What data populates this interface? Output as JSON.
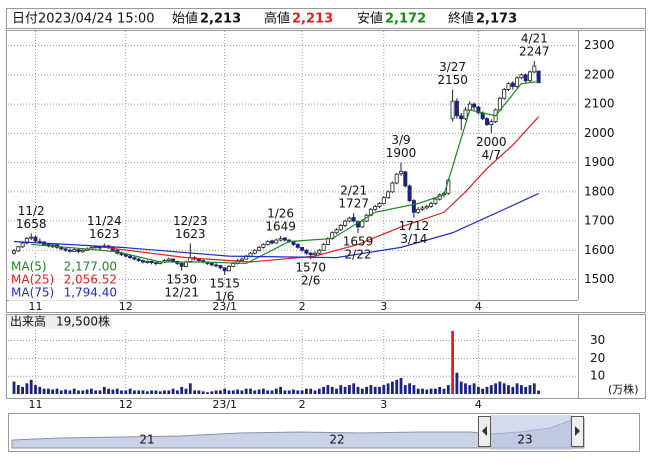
{
  "chart_data": {
    "type": "candlestick",
    "header": {
      "date_label": "日付",
      "date": "2023/04/24 15:00",
      "open_label": "始値",
      "open": "2,213",
      "high_label": "高値",
      "high": "2,213",
      "low_label": "安値",
      "low": "2,172",
      "close_label": "終値",
      "close": "2,173"
    },
    "up_color": "#ffffff",
    "down_color": "#1a237e",
    "edge_color": "#222222",
    "ylim": [
      1430,
      2350
    ],
    "yticks": [
      1500,
      1600,
      1700,
      1800,
      1900,
      2000,
      2100,
      2200,
      2300
    ],
    "grid": true,
    "months": [
      {
        "label": "11",
        "candle": 5
      },
      {
        "label": "12",
        "candle": 26
      },
      {
        "label": "23/1",
        "candle": 49
      },
      {
        "label": "2",
        "candle": 67
      },
      {
        "label": "3",
        "candle": 86
      },
      {
        "label": "4",
        "candle": 108
      }
    ],
    "candles": [
      [
        1590,
        1605,
        1585,
        1598
      ],
      [
        1598,
        1615,
        1595,
        1612
      ],
      [
        1612,
        1630,
        1608,
        1625
      ],
      [
        1625,
        1645,
        1620,
        1640
      ],
      [
        1642,
        1658,
        1635,
        1645
      ],
      [
        1645,
        1650,
        1628,
        1632
      ],
      [
        1630,
        1640,
        1622,
        1628
      ],
      [
        1628,
        1632,
        1615,
        1620
      ],
      [
        1620,
        1625,
        1610,
        1615
      ],
      [
        1612,
        1622,
        1608,
        1618
      ],
      [
        1618,
        1620,
        1605,
        1610
      ],
      [
        1610,
        1614,
        1600,
        1605
      ],
      [
        1605,
        1608,
        1595,
        1600
      ],
      [
        1600,
        1606,
        1592,
        1598
      ],
      [
        1596,
        1608,
        1594,
        1602
      ],
      [
        1602,
        1604,
        1590,
        1596
      ],
      [
        1595,
        1604,
        1592,
        1600
      ],
      [
        1600,
        1610,
        1598,
        1605
      ],
      [
        1604,
        1614,
        1602,
        1610
      ],
      [
        1610,
        1616,
        1606,
        1612
      ],
      [
        1612,
        1615,
        1602,
        1608
      ],
      [
        1610,
        1623,
        1608,
        1615
      ],
      [
        1615,
        1618,
        1605,
        1610
      ],
      [
        1610,
        1612,
        1596,
        1600
      ],
      [
        1600,
        1604,
        1586,
        1590
      ],
      [
        1590,
        1595,
        1580,
        1585
      ],
      [
        1585,
        1590,
        1575,
        1580
      ],
      [
        1580,
        1584,
        1570,
        1575
      ],
      [
        1575,
        1578,
        1565,
        1570
      ],
      [
        1570,
        1574,
        1560,
        1565
      ],
      [
        1565,
        1568,
        1555,
        1560
      ],
      [
        1558,
        1566,
        1554,
        1562
      ],
      [
        1562,
        1564,
        1552,
        1558
      ],
      [
        1558,
        1560,
        1548,
        1555
      ],
      [
        1555,
        1564,
        1552,
        1560
      ],
      [
        1560,
        1570,
        1556,
        1565
      ],
      [
        1565,
        1575,
        1562,
        1570
      ],
      [
        1570,
        1572,
        1558,
        1562
      ],
      [
        1562,
        1565,
        1550,
        1555
      ],
      [
        1555,
        1558,
        1530,
        1545
      ],
      [
        1545,
        1565,
        1542,
        1560
      ],
      [
        1562,
        1623,
        1558,
        1575
      ],
      [
        1575,
        1580,
        1565,
        1570
      ],
      [
        1570,
        1574,
        1560,
        1565
      ],
      [
        1565,
        1568,
        1555,
        1560
      ],
      [
        1560,
        1562,
        1550,
        1555
      ],
      [
        1555,
        1558,
        1545,
        1550
      ],
      [
        1550,
        1556,
        1542,
        1548
      ],
      [
        1548,
        1550,
        1535,
        1540
      ],
      [
        1540,
        1542,
        1515,
        1530
      ],
      [
        1530,
        1550,
        1528,
        1545
      ],
      [
        1545,
        1560,
        1542,
        1555
      ],
      [
        1555,
        1570,
        1552,
        1565
      ],
      [
        1565,
        1575,
        1560,
        1570
      ],
      [
        1570,
        1585,
        1568,
        1580
      ],
      [
        1580,
        1595,
        1576,
        1590
      ],
      [
        1590,
        1604,
        1586,
        1600
      ],
      [
        1600,
        1615,
        1596,
        1610
      ],
      [
        1610,
        1624,
        1606,
        1620
      ],
      [
        1620,
        1634,
        1616,
        1630
      ],
      [
        1632,
        1636,
        1620,
        1625
      ],
      [
        1625,
        1640,
        1622,
        1635
      ],
      [
        1635,
        1649,
        1630,
        1640
      ],
      [
        1642,
        1645,
        1630,
        1635
      ],
      [
        1635,
        1638,
        1625,
        1630
      ],
      [
        1630,
        1632,
        1615,
        1620
      ],
      [
        1620,
        1624,
        1605,
        1610
      ],
      [
        1610,
        1612,
        1595,
        1600
      ],
      [
        1600,
        1604,
        1585,
        1590
      ],
      [
        1590,
        1594,
        1570,
        1585
      ],
      [
        1585,
        1596,
        1580,
        1590
      ],
      [
        1590,
        1605,
        1586,
        1600
      ],
      [
        1600,
        1625,
        1598,
        1620
      ],
      [
        1620,
        1645,
        1618,
        1640
      ],
      [
        1640,
        1665,
        1636,
        1660
      ],
      [
        1660,
        1676,
        1655,
        1670
      ],
      [
        1670,
        1690,
        1666,
        1685
      ],
      [
        1685,
        1705,
        1680,
        1700
      ],
      [
        1700,
        1715,
        1695,
        1710
      ],
      [
        1712,
        1727,
        1695,
        1700
      ],
      [
        1698,
        1702,
        1659,
        1680
      ],
      [
        1680,
        1705,
        1676,
        1700
      ],
      [
        1700,
        1725,
        1696,
        1720
      ],
      [
        1720,
        1745,
        1716,
        1740
      ],
      [
        1740,
        1756,
        1735,
        1750
      ],
      [
        1750,
        1765,
        1744,
        1760
      ],
      [
        1760,
        1785,
        1756,
        1780
      ],
      [
        1780,
        1805,
        1776,
        1800
      ],
      [
        1800,
        1835,
        1796,
        1830
      ],
      [
        1830,
        1865,
        1826,
        1860
      ],
      [
        1862,
        1900,
        1855,
        1870
      ],
      [
        1868,
        1872,
        1815,
        1820
      ],
      [
        1820,
        1825,
        1765,
        1770
      ],
      [
        1770,
        1775,
        1712,
        1730
      ],
      [
        1730,
        1748,
        1725,
        1740
      ],
      [
        1740,
        1752,
        1735,
        1745
      ],
      [
        1745,
        1756,
        1740,
        1750
      ],
      [
        1750,
        1766,
        1745,
        1760
      ],
      [
        1760,
        1780,
        1755,
        1775
      ],
      [
        1775,
        1795,
        1770,
        1790
      ],
      [
        1790,
        1800,
        1780,
        1795
      ],
      [
        1795,
        1845,
        1790,
        1840
      ],
      [
        2050,
        2150,
        2040,
        2110
      ],
      [
        2110,
        2120,
        2050,
        2060
      ],
      [
        2060,
        2070,
        2010,
        2050
      ],
      [
        2050,
        2090,
        2045,
        2080
      ],
      [
        2080,
        2110,
        2075,
        2100
      ],
      [
        2100,
        2105,
        2080,
        2090
      ],
      [
        2090,
        2095,
        2065,
        2070
      ],
      [
        2070,
        2075,
        2045,
        2050
      ],
      [
        2050,
        2055,
        2025,
        2030
      ],
      [
        2030,
        2048,
        2000,
        2040
      ],
      [
        2040,
        2085,
        2035,
        2080
      ],
      [
        2080,
        2125,
        2075,
        2120
      ],
      [
        2120,
        2155,
        2115,
        2150
      ],
      [
        2150,
        2175,
        2145,
        2170
      ],
      [
        2172,
        2178,
        2150,
        2160
      ],
      [
        2160,
        2195,
        2155,
        2190
      ],
      [
        2190,
        2205,
        2185,
        2200
      ],
      [
        2200,
        2205,
        2170,
        2180
      ],
      [
        2180,
        2215,
        2175,
        2210
      ],
      [
        2210,
        2247,
        2205,
        2230
      ],
      [
        2213,
        2213,
        2172,
        2173
      ]
    ],
    "series": [
      {
        "name": "MA(5)",
        "legend_value": "2,177.00",
        "color": "#1b8a1b",
        "x": [
          4,
          14,
          24,
          34,
          44,
          54,
          64,
          74,
          84,
          94,
          100,
          106,
          112,
          118,
          122
        ],
        "values": [
          1620,
          1608,
          1595,
          1560,
          1560,
          1555,
          1630,
          1640,
          1730,
          1760,
          1790,
          2080,
          2060,
          2170,
          2177
        ]
      },
      {
        "name": "MA(25)",
        "legend_value": "2,056.52",
        "color": "#e02020",
        "x": [
          20,
          40,
          55,
          70,
          80,
          90,
          100,
          105,
          110,
          116,
          122
        ],
        "values": [
          1612,
          1575,
          1560,
          1580,
          1620,
          1680,
          1730,
          1800,
          1880,
          1960,
          2057
        ]
      },
      {
        "name": "MA(75)",
        "legend_value": "1,794.40",
        "color": "#2030c0",
        "x": [
          0,
          25,
          50,
          75,
          90,
          102,
          111,
          122
        ],
        "values": [
          1630,
          1610,
          1580,
          1575,
          1610,
          1660,
          1720,
          1794
        ]
      }
    ],
    "annotations": [
      {
        "date": "11/2",
        "price": 1658,
        "candle": 4,
        "side": "above"
      },
      {
        "date": "11/24",
        "price": 1623,
        "candle": 21,
        "side": "above"
      },
      {
        "date": "12/21",
        "price": 1530,
        "candle": 39,
        "side": "below"
      },
      {
        "date": "12/23",
        "price": 1623,
        "candle": 41,
        "side": "above"
      },
      {
        "date": "1/6",
        "price": 1515,
        "candle": 49,
        "side": "below"
      },
      {
        "date": "1/26",
        "price": 1649,
        "candle": 62,
        "side": "above"
      },
      {
        "date": "2/6",
        "price": 1570,
        "candle": 69,
        "side": "below"
      },
      {
        "date": "2/21",
        "price": 1727,
        "candle": 79,
        "side": "above"
      },
      {
        "date": "2/22",
        "price": 1659,
        "candle": 80,
        "side": "below"
      },
      {
        "date": "3/9",
        "price": 1900,
        "candle": 90,
        "side": "above"
      },
      {
        "date": "3/14",
        "price": 1712,
        "candle": 93,
        "side": "below"
      },
      {
        "date": "3/27",
        "price": 2150,
        "candle": 102,
        "side": "above"
      },
      {
        "date": "4/7",
        "price": 2000,
        "candle": 111,
        "side": "below"
      },
      {
        "date": "4/21",
        "price": 2247,
        "candle": 121,
        "side": "above"
      }
    ],
    "volume": {
      "label": "出来高",
      "latest": "19,500株",
      "unit": "(万株)",
      "color": "#1a237e",
      "spike_color": "#e02020",
      "ylim": [
        0,
        36
      ],
      "yticks": [
        10,
        20,
        30
      ],
      "values": [
        7,
        5,
        4,
        6,
        8,
        5,
        4,
        3,
        3,
        2.5,
        3,
        2,
        2.5,
        2,
        3,
        2,
        2,
        2.5,
        3,
        2,
        2,
        4,
        3,
        2.5,
        3,
        2,
        2,
        3,
        2,
        2,
        2,
        1.5,
        2,
        2,
        1.5,
        2,
        2,
        3,
        2,
        4,
        3,
        6,
        2,
        2,
        1.5,
        1,
        1.5,
        2,
        2,
        3,
        2,
        2,
        2.5,
        2,
        3,
        3,
        2,
        2.5,
        3,
        2,
        2,
        3,
        4,
        2,
        2,
        2.5,
        2,
        2,
        3,
        3,
        2,
        3,
        4,
        5,
        4,
        3,
        5,
        4,
        5,
        6,
        4,
        3,
        4,
        5,
        4,
        4,
        5,
        6,
        7,
        8,
        9,
        5,
        6,
        5,
        3,
        3,
        2.5,
        3,
        3,
        4,
        3,
        5,
        35.5,
        12,
        7,
        6,
        5,
        6,
        4,
        3,
        4,
        5,
        6,
        7,
        6,
        5,
        4,
        6,
        5,
        4,
        5,
        6,
        1.95
      ]
    },
    "navigator": {
      "labels": [
        "21",
        "22",
        "23"
      ]
    }
  }
}
